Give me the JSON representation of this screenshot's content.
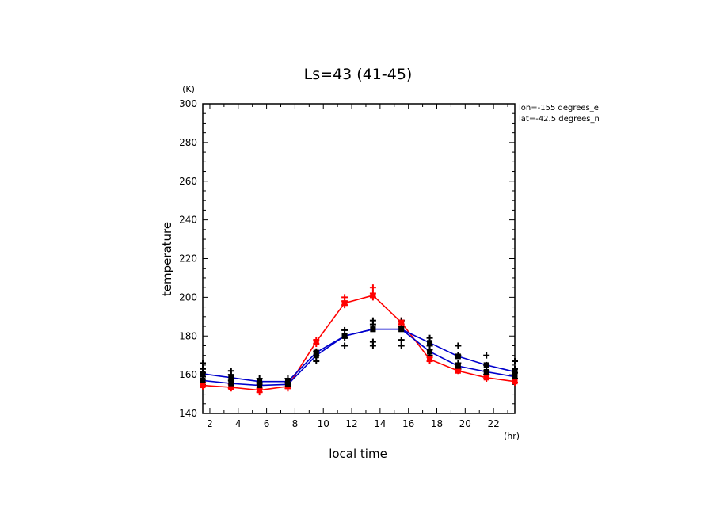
{
  "chart_data": {
    "type": "line",
    "title": "Ls=43 (41-45)",
    "xlabel": "local time",
    "ylabel": "temperature",
    "x_unit": "(hr)",
    "y_unit": "(K)",
    "xlim": [
      1.5,
      23.5
    ],
    "ylim": [
      140,
      300
    ],
    "xticks": [
      2,
      4,
      6,
      8,
      10,
      12,
      14,
      16,
      18,
      20,
      22
    ],
    "yticks": [
      140,
      160,
      180,
      200,
      220,
      240,
      260,
      280,
      300
    ],
    "annotations": [
      "lon=-155 degrees_e",
      "lat=-42.5 degrees_n"
    ],
    "x": [
      1.5,
      3.5,
      5.5,
      7.5,
      9.5,
      11.5,
      13.5,
      15.5,
      17.5,
      19.5,
      21.5,
      23.5
    ],
    "series": [
      {
        "color": "#ff0000",
        "style": "line",
        "values": [
          154.5,
          153.5,
          152,
          154,
          177,
          197,
          201,
          187,
          168,
          162,
          158.5,
          156.5
        ]
      },
      {
        "color": "#0000cc",
        "style": "line",
        "values": [
          160.5,
          158.5,
          156.5,
          156.5,
          171.5,
          180,
          183.5,
          183.5,
          176.5,
          169.5,
          165,
          161.5
        ]
      },
      {
        "color": "#0000cc",
        "style": "line",
        "values": [
          157,
          155.5,
          154.5,
          155,
          170,
          180,
          183.5,
          183.5,
          172,
          164.5,
          161.5,
          159
        ]
      },
      {
        "color": "#ff0000",
        "style": "points",
        "points": [
          [
            1.5,
            154
          ],
          [
            1.5,
            156
          ],
          [
            3.5,
            153
          ],
          [
            3.5,
            155
          ],
          [
            5.5,
            151
          ],
          [
            5.5,
            153
          ],
          [
            7.5,
            153
          ],
          [
            7.5,
            155
          ],
          [
            9.5,
            176
          ],
          [
            9.5,
            178
          ],
          [
            11.5,
            196
          ],
          [
            11.5,
            198
          ],
          [
            11.5,
            200
          ],
          [
            13.5,
            200
          ],
          [
            13.5,
            202
          ],
          [
            13.5,
            205
          ],
          [
            15.5,
            186
          ],
          [
            15.5,
            188
          ],
          [
            17.5,
            167
          ],
          [
            17.5,
            169
          ],
          [
            19.5,
            162
          ],
          [
            19.5,
            163
          ],
          [
            21.5,
            158
          ],
          [
            21.5,
            160
          ],
          [
            23.5,
            156
          ],
          [
            23.5,
            158
          ]
        ]
      },
      {
        "color": "#000000",
        "style": "points",
        "points": [
          [
            1.5,
            157
          ],
          [
            1.5,
            159
          ],
          [
            1.5,
            161
          ],
          [
            1.5,
            163
          ],
          [
            1.5,
            166
          ],
          [
            3.5,
            157
          ],
          [
            3.5,
            160
          ],
          [
            3.5,
            162
          ],
          [
            5.5,
            155
          ],
          [
            5.5,
            156
          ],
          [
            5.5,
            158
          ],
          [
            7.5,
            155
          ],
          [
            7.5,
            156
          ],
          [
            7.5,
            158
          ],
          [
            9.5,
            167
          ],
          [
            9.5,
            170
          ],
          [
            9.5,
            172
          ],
          [
            11.5,
            175
          ],
          [
            11.5,
            179
          ],
          [
            11.5,
            183
          ],
          [
            13.5,
            175
          ],
          [
            13.5,
            177
          ],
          [
            13.5,
            186
          ],
          [
            13.5,
            188
          ],
          [
            15.5,
            175
          ],
          [
            15.5,
            178
          ],
          [
            15.5,
            185
          ],
          [
            15.5,
            188
          ],
          [
            17.5,
            170
          ],
          [
            17.5,
            173
          ],
          [
            17.5,
            175
          ],
          [
            17.5,
            179
          ],
          [
            19.5,
            163
          ],
          [
            19.5,
            166
          ],
          [
            19.5,
            170
          ],
          [
            19.5,
            175
          ],
          [
            21.5,
            160
          ],
          [
            21.5,
            162
          ],
          [
            21.5,
            165
          ],
          [
            21.5,
            170
          ],
          [
            23.5,
            158
          ],
          [
            23.5,
            161
          ],
          [
            23.5,
            163
          ],
          [
            23.5,
            167
          ]
        ]
      }
    ]
  }
}
